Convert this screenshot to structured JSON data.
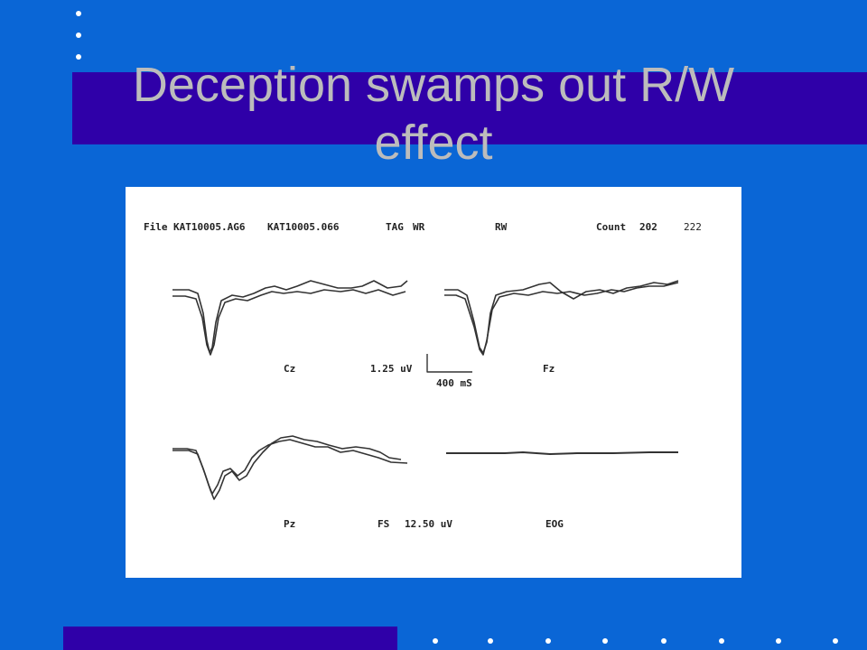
{
  "slide": {
    "title": "Deception swamps out R/W effect"
  },
  "figure": {
    "header": {
      "file_label": "File",
      "file1": "KAT10005.AG6",
      "file2": "KAT10005.066",
      "tag_label": "TAG",
      "tag_value": "WR",
      "rw_label": "RW",
      "count_label": "Count",
      "count1": "202",
      "count2": "222"
    },
    "channels": {
      "cz": "Cz",
      "fz": "Fz",
      "pz": "Pz",
      "eog": "EOG"
    },
    "scale": {
      "amplitude": "1.25 uV",
      "time": "400 mS",
      "fs_label": "FS",
      "fs_value": "12.50 uV"
    }
  },
  "colors": {
    "background": "#0a66d6",
    "band": "#2f00a8",
    "title_text": "#bcbcbc"
  }
}
